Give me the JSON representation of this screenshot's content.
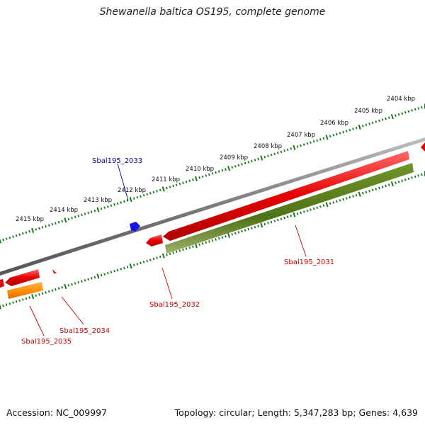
{
  "title": "Shewanella baltica OS195, complete genome",
  "footer": {
    "accession": "Accession: NC_009997",
    "summary": "Topology: circular; Length: 5,347,283 bp; Genes: 4,639"
  },
  "colors": {
    "backbone": "#7a7a7a",
    "tick": "#1a7a1a",
    "forward_gene": "#e00000",
    "reverse_gene_red": "#e00000",
    "cds_feature": "#5a7f20",
    "orange_feature": "#ff8c00",
    "blue_feature": "#1010e0",
    "label_red": "#c00000",
    "label_blue": "#0000c0"
  },
  "tick_labels": [
    "2404 kbp",
    "2405 kbp",
    "2406 kbp",
    "2407 kbp",
    "2408 kbp",
    "2409 kbp",
    "2410 kbp",
    "2411 kbp",
    "2412 kbp",
    "2413 kbp",
    "2414 kbp",
    "2415 kbp"
  ],
  "genes": [
    {
      "label": "Sbal195_2031",
      "color": "label_red"
    },
    {
      "label": "Sbal195_2032",
      "color": "label_red"
    },
    {
      "label": "Sbal195_2033",
      "color": "label_blue"
    },
    {
      "label": "Sbal195_2034",
      "color": "label_red"
    },
    {
      "label": "Sbal195_2035",
      "color": "label_red"
    }
  ]
}
